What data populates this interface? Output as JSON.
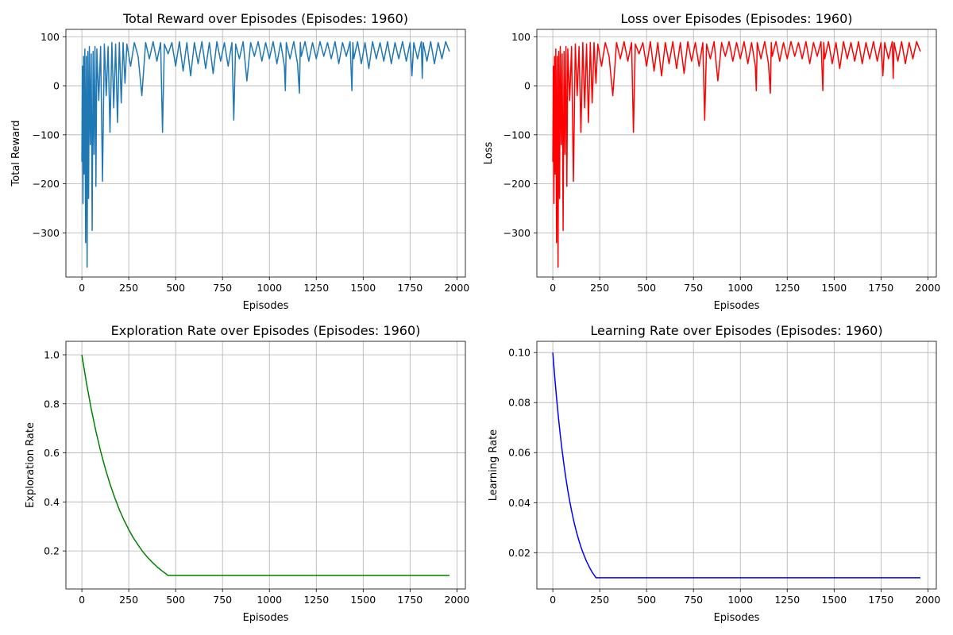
{
  "chart_data": [
    {
      "type": "line",
      "title": "Total Reward over Episodes (Episodes: 1960)",
      "xlabel": "Episodes",
      "ylabel": "Total Reward",
      "xlim": [
        -85,
        2045
      ],
      "ylim": [
        -390,
        115
      ],
      "xticks": [
        0,
        250,
        500,
        750,
        1000,
        1250,
        1500,
        1750,
        2000
      ],
      "yticks": [
        -300,
        -200,
        -100,
        0,
        100
      ],
      "grid": true,
      "color": "#1f77b4",
      "series": [
        {
          "x": [
            0,
            3,
            6,
            9,
            12,
            16,
            20,
            24,
            28,
            32,
            36,
            40,
            45,
            50,
            55,
            60,
            65,
            70,
            75,
            80,
            90,
            100,
            110,
            120,
            130,
            140,
            150,
            160,
            170,
            180,
            190,
            200,
            210,
            220,
            230,
            240,
            260,
            280,
            300,
            320,
            340,
            360,
            380,
            400,
            420,
            430,
            440,
            460,
            480,
            500,
            520,
            540,
            560,
            580,
            600,
            620,
            640,
            660,
            680,
            700,
            720,
            740,
            760,
            780,
            800,
            810,
            820,
            840,
            860,
            880,
            900,
            920,
            940,
            960,
            980,
            1000,
            1020,
            1040,
            1060,
            1080,
            1085,
            1090,
            1110,
            1130,
            1150,
            1160,
            1165,
            1170,
            1190,
            1210,
            1230,
            1250,
            1270,
            1290,
            1310,
            1330,
            1350,
            1370,
            1390,
            1410,
            1430,
            1440,
            1445,
            1450,
            1470,
            1490,
            1510,
            1530,
            1550,
            1570,
            1590,
            1610,
            1630,
            1650,
            1670,
            1690,
            1710,
            1730,
            1750,
            1760,
            1770,
            1790,
            1810,
            1815,
            1820,
            1840,
            1860,
            1880,
            1900,
            1920,
            1940,
            1960
          ],
          "y": [
            -155,
            40,
            -240,
            60,
            -180,
            75,
            -320,
            60,
            -370,
            70,
            -230,
            80,
            -120,
            65,
            -295,
            70,
            -140,
            80,
            -205,
            75,
            -30,
            80,
            -195,
            85,
            -20,
            80,
            -95,
            88,
            -45,
            85,
            -75,
            88,
            -35,
            88,
            5,
            85,
            40,
            88,
            60,
            -20,
            88,
            55,
            90,
            50,
            88,
            -95,
            85,
            65,
            88,
            40,
            90,
            30,
            88,
            20,
            88,
            45,
            90,
            35,
            88,
            25,
            90,
            50,
            88,
            40,
            88,
            -70,
            85,
            55,
            90,
            10,
            88,
            60,
            90,
            50,
            88,
            55,
            90,
            45,
            88,
            40,
            -10,
            88,
            55,
            90,
            45,
            -15,
            88,
            60,
            90,
            50,
            88,
            55,
            90,
            60,
            88,
            55,
            90,
            45,
            88,
            60,
            90,
            -10,
            88,
            55,
            90,
            45,
            88,
            35,
            90,
            55,
            88,
            50,
            90,
            45,
            88,
            55,
            90,
            50,
            88,
            20,
            88,
            55,
            90,
            15,
            88,
            50,
            90,
            45,
            88,
            55,
            90,
            70
          ]
        }
      ]
    },
    {
      "type": "line",
      "title": "Loss over Episodes (Episodes: 1960)",
      "xlabel": "Episodes",
      "ylabel": "Loss",
      "xlim": [
        -85,
        2045
      ],
      "ylim": [
        -390,
        115
      ],
      "xticks": [
        0,
        250,
        500,
        750,
        1000,
        1250,
        1500,
        1750,
        2000
      ],
      "yticks": [
        -300,
        -200,
        -100,
        0,
        100
      ],
      "grid": true,
      "color": "#ff0000",
      "series": [
        {
          "x": [
            0,
            3,
            6,
            9,
            12,
            16,
            20,
            24,
            28,
            32,
            36,
            40,
            45,
            50,
            55,
            60,
            65,
            70,
            75,
            80,
            90,
            100,
            110,
            120,
            130,
            140,
            150,
            160,
            170,
            180,
            190,
            200,
            210,
            220,
            230,
            240,
            260,
            280,
            300,
            320,
            340,
            360,
            380,
            400,
            420,
            430,
            440,
            460,
            480,
            500,
            520,
            540,
            560,
            580,
            600,
            620,
            640,
            660,
            680,
            700,
            720,
            740,
            760,
            780,
            800,
            810,
            820,
            840,
            860,
            880,
            900,
            920,
            940,
            960,
            980,
            1000,
            1020,
            1040,
            1060,
            1080,
            1085,
            1090,
            1110,
            1130,
            1150,
            1160,
            1165,
            1170,
            1190,
            1210,
            1230,
            1250,
            1270,
            1290,
            1310,
            1330,
            1350,
            1370,
            1390,
            1410,
            1430,
            1440,
            1445,
            1450,
            1470,
            1490,
            1510,
            1530,
            1550,
            1570,
            1590,
            1610,
            1630,
            1650,
            1670,
            1690,
            1710,
            1730,
            1750,
            1760,
            1770,
            1790,
            1810,
            1815,
            1820,
            1840,
            1860,
            1880,
            1900,
            1920,
            1940,
            1960
          ],
          "y": [
            -155,
            40,
            -240,
            60,
            -180,
            75,
            -320,
            60,
            -370,
            70,
            -230,
            80,
            -120,
            65,
            -295,
            70,
            -140,
            80,
            -205,
            75,
            -30,
            80,
            -195,
            85,
            -20,
            80,
            -95,
            88,
            -45,
            85,
            -75,
            88,
            -35,
            88,
            5,
            85,
            40,
            88,
            60,
            -20,
            88,
            55,
            90,
            50,
            88,
            -95,
            85,
            65,
            88,
            40,
            90,
            30,
            88,
            20,
            88,
            45,
            90,
            35,
            88,
            25,
            90,
            50,
            88,
            40,
            88,
            -70,
            85,
            55,
            90,
            10,
            88,
            60,
            90,
            50,
            88,
            55,
            90,
            45,
            88,
            40,
            -10,
            88,
            55,
            90,
            45,
            -15,
            88,
            60,
            90,
            50,
            88,
            55,
            90,
            60,
            88,
            55,
            90,
            45,
            88,
            60,
            90,
            -10,
            88,
            55,
            90,
            45,
            88,
            35,
            90,
            55,
            88,
            50,
            90,
            45,
            88,
            55,
            90,
            50,
            88,
            20,
            88,
            55,
            90,
            15,
            88,
            50,
            90,
            45,
            88,
            55,
            90,
            70
          ]
        }
      ]
    },
    {
      "type": "line",
      "title": "Exploration Rate over Episodes (Episodes: 1960)",
      "xlabel": "Episodes",
      "ylabel": "Exploration Rate",
      "xlim": [
        -85,
        2045
      ],
      "ylim": [
        0.045,
        1.055
      ],
      "xticks": [
        0,
        250,
        500,
        750,
        1000,
        1250,
        1500,
        1750,
        2000
      ],
      "yticks": [
        0.2,
        0.4,
        0.6,
        0.8,
        1.0
      ],
      "grid": true,
      "color": "#008000",
      "series": [
        {
          "x": [
            0,
            25,
            50,
            75,
            100,
            125,
            150,
            175,
            200,
            225,
            250,
            275,
            300,
            325,
            350,
            375,
            400,
            425,
            450,
            460,
            500,
            750,
            1000,
            1250,
            1500,
            1750,
            1960
          ],
          "y": [
            1.0,
            0.883,
            0.779,
            0.688,
            0.607,
            0.536,
            0.473,
            0.418,
            0.368,
            0.325,
            0.287,
            0.253,
            0.224,
            0.197,
            0.174,
            0.154,
            0.136,
            0.12,
            0.106,
            0.1,
            0.1,
            0.1,
            0.1,
            0.1,
            0.1,
            0.1,
            0.1
          ]
        }
      ]
    },
    {
      "type": "line",
      "title": "Learning Rate over Episodes (Episodes: 1960)",
      "xlabel": "Episodes",
      "ylabel": "Learning Rate",
      "xlim": [
        -85,
        2045
      ],
      "ylim": [
        0.0055,
        0.1045
      ],
      "xticks": [
        0,
        250,
        500,
        750,
        1000,
        1250,
        1500,
        1750,
        2000
      ],
      "yticks": [
        0.02,
        0.04,
        0.06,
        0.08,
        0.1
      ],
      "grid": true,
      "color": "#0000ff",
      "series": [
        {
          "x": [
            0,
            10,
            20,
            30,
            40,
            50,
            60,
            70,
            80,
            90,
            100,
            110,
            120,
            130,
            140,
            150,
            160,
            170,
            180,
            190,
            200,
            210,
            220,
            230,
            500,
            750,
            1000,
            1250,
            1500,
            1750,
            1960
          ],
          "y": [
            0.1,
            0.0905,
            0.0819,
            0.0741,
            0.067,
            0.0607,
            0.0549,
            0.0497,
            0.0449,
            0.0407,
            0.0368,
            0.0333,
            0.0301,
            0.0273,
            0.0247,
            0.0223,
            0.0202,
            0.0183,
            0.0165,
            0.015,
            0.0135,
            0.0122,
            0.0111,
            0.01,
            0.01,
            0.01,
            0.01,
            0.01,
            0.01,
            0.01,
            0.01
          ]
        }
      ]
    }
  ]
}
